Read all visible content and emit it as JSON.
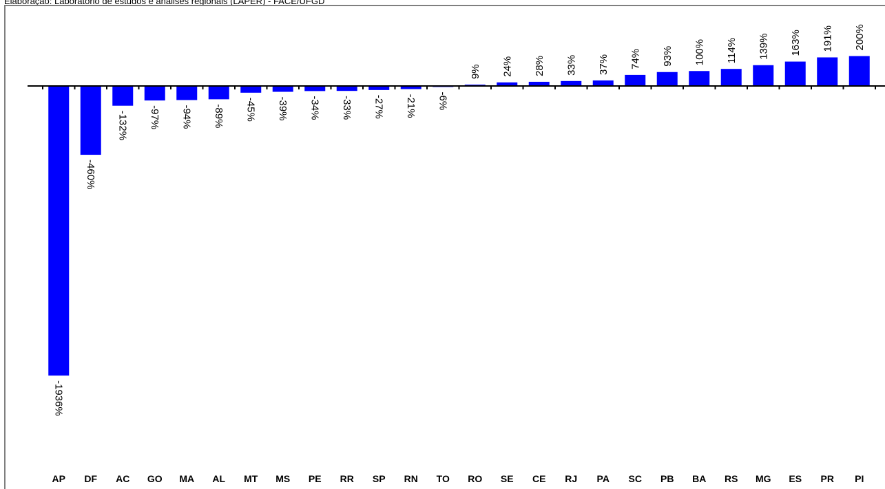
{
  "caption": "Elaboração: Laboratório de estudos e análises regionais (LAPER) - FACE/UFGD",
  "colors": {
    "bar": "#0000ff",
    "axis": "#000000",
    "frame": "#7f7f7f"
  },
  "chart_data": {
    "type": "bar",
    "title": "",
    "xlabel": "",
    "ylabel": "",
    "categories": [
      "AP",
      "DF",
      "AC",
      "GO",
      "MA",
      "AL",
      "MT",
      "MS",
      "PE",
      "RR",
      "SP",
      "RN",
      "TO",
      "RO",
      "SE",
      "CE",
      "RJ",
      "PA",
      "SC",
      "PB",
      "BA",
      "RS",
      "MG",
      "ES",
      "PR",
      "PI"
    ],
    "values": [
      -1936,
      -460,
      -132,
      -97,
      -94,
      -89,
      -45,
      -39,
      -34,
      -33,
      -27,
      -21,
      -6,
      9,
      24,
      28,
      33,
      37,
      74,
      93,
      100,
      114,
      139,
      163,
      191,
      200
    ],
    "value_labels": [
      "-1936%",
      "-460%",
      "-132%",
      "-97%",
      "-94%",
      "-89%",
      "-45%",
      "-39%",
      "-34%",
      "-33%",
      "-27%",
      "-21%",
      "-6%",
      "9%",
      "24%",
      "28%",
      "33%",
      "37%",
      "74%",
      "93%",
      "100%",
      "114%",
      "139%",
      "163%",
      "191%",
      "200%"
    ],
    "ylim": [
      -1936,
      200
    ],
    "grid": false,
    "legend": "none",
    "label_rotation": "vertical"
  }
}
